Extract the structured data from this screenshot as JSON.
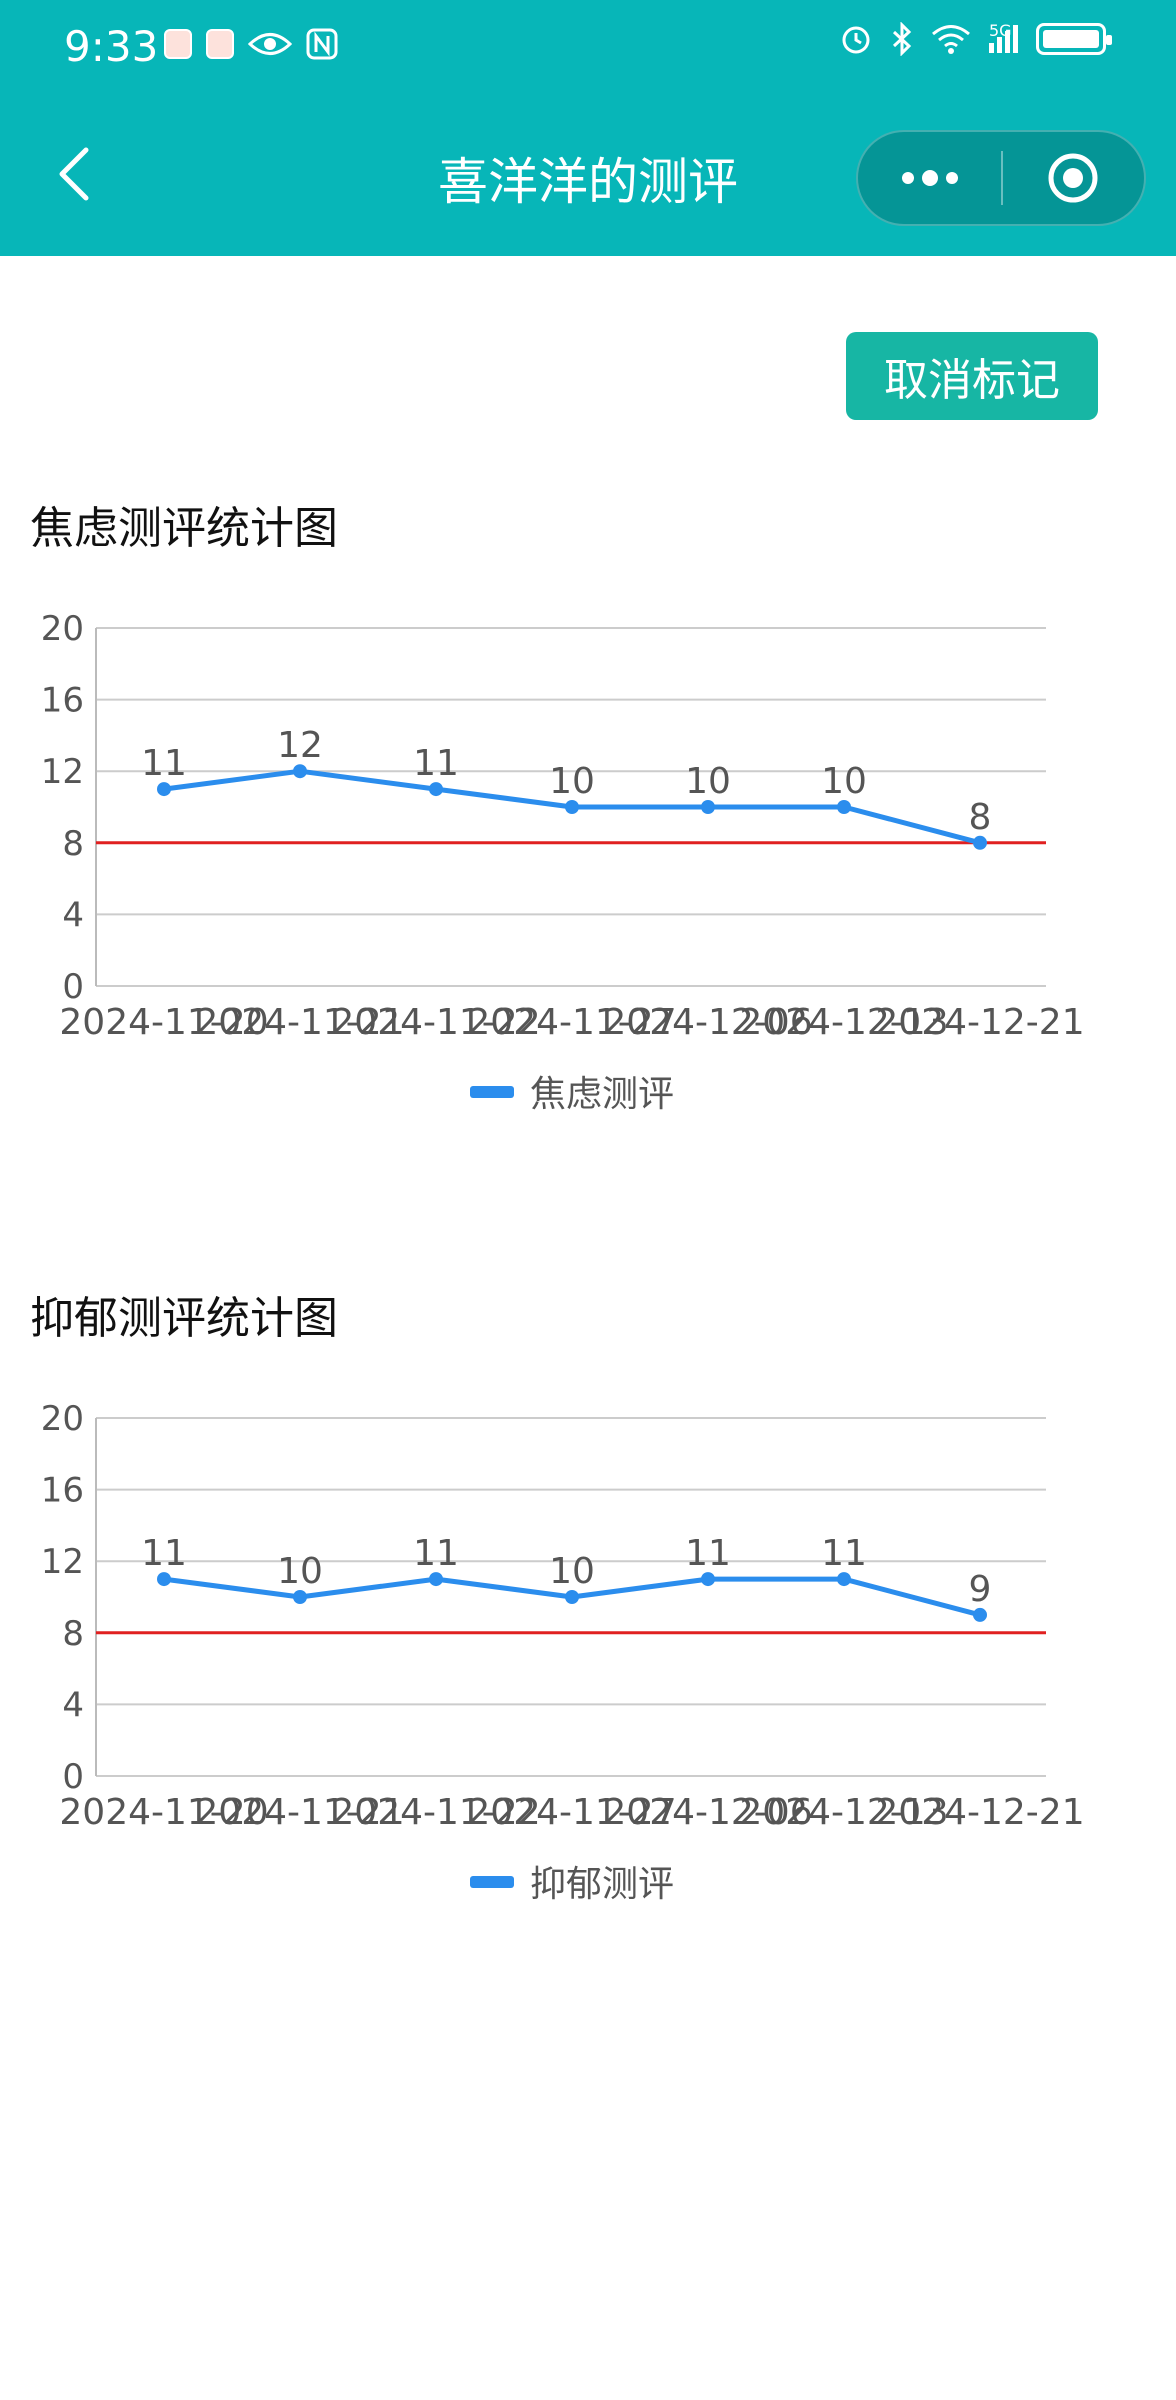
{
  "status_bar": {
    "time": "9:33",
    "icons_left": [
      "book-icon",
      "book-icon",
      "eye-icon",
      "nfc-icon"
    ],
    "icons_right": [
      "alarm-icon",
      "bluetooth-icon",
      "wifi-icon",
      "signal-5g-icon",
      "battery-icon"
    ],
    "network": "5G"
  },
  "nav": {
    "title": "喜洋洋的测评"
  },
  "actions": {
    "cancel_mark": "取消标记"
  },
  "colors": {
    "header": "#07b6b8",
    "button": "#17b6a4",
    "series": "#2b8ded",
    "threshold": "#e02020"
  },
  "charts": {
    "anxiety": {
      "title": "焦虑测评统计图"
    },
    "depression": {
      "title": "抑郁测评统计图"
    }
  },
  "chart_data": [
    {
      "type": "line",
      "x": [
        "2024-11-20",
        "2024-11-21",
        "2024-11-22",
        "2024-11-27",
        "2024-12-06",
        "2024-12-13",
        "2024-12-21"
      ],
      "series": [
        {
          "name": "焦虑测评",
          "values": [
            11,
            12,
            11,
            10,
            10,
            10,
            8
          ]
        }
      ],
      "threshold": 8,
      "ylim": [
        0,
        20
      ],
      "yticks": [
        0,
        4,
        8,
        12,
        16,
        20
      ],
      "legend": "bottom-center",
      "grid": true
    },
    {
      "type": "line",
      "x": [
        "2024-11-20",
        "2024-11-21",
        "2024-11-22",
        "2024-11-27",
        "2024-12-06",
        "2024-12-13",
        "2024-12-21"
      ],
      "series": [
        {
          "name": "抑郁测评",
          "values": [
            11,
            10,
            11,
            10,
            11,
            11,
            9
          ]
        }
      ],
      "threshold": 8,
      "ylim": [
        0,
        20
      ],
      "yticks": [
        0,
        4,
        8,
        12,
        16,
        20
      ],
      "legend": "bottom-center",
      "grid": true
    }
  ]
}
